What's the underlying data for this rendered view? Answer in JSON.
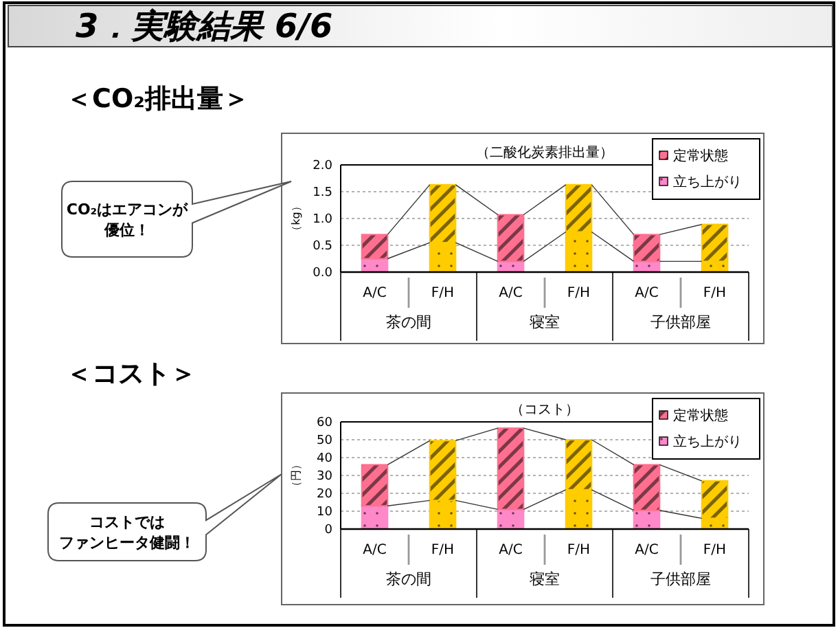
{
  "chart_data": [
    {
      "type": "bar",
      "title": "＜CO₂排出量＞",
      "subtitle": "（二酸化炭素排出量）",
      "ylabel": "（kg）",
      "stacked": true,
      "categories": [
        "A/C",
        "F/H",
        "A/C",
        "F/H",
        "A/C",
        "F/H"
      ],
      "series": [
        {
          "name": "立ち上がり",
          "colors": [
            "#ff88c8",
            "#ffcc00",
            "#ff88c8",
            "#ffcc00",
            "#ff88c8",
            "#ffcc00"
          ],
          "values": [
            0.25,
            0.55,
            0.2,
            0.75,
            0.2,
            0.2
          ]
        },
        {
          "name": "定常状態",
          "colors": [
            "#ff7090",
            "#ffcc00",
            "#ff7090",
            "#ffcc00",
            "#ff7090",
            "#ffcc00"
          ],
          "values": [
            0.45,
            1.08,
            0.87,
            0.88,
            0.5,
            0.69
          ]
        }
      ],
      "ylim": [
        0,
        2
      ],
      "yticks": [
        {
          "value": 0,
          "label": "0.0"
        },
        {
          "value": 0.5,
          "label": "0.5"
        },
        {
          "value": 1,
          "label": "1.0"
        },
        {
          "value": 1.5,
          "label": "1.5"
        },
        {
          "value": 2,
          "label": "2.0"
        }
      ],
      "grid": "y",
      "legend": "top right",
      "annotations": [
        "3．実験結果 6/6",
        "CO₂はエアコンが",
        "優位！",
        "茶の間",
        "寝室",
        "子供部屋"
      ]
    },
    {
      "type": "bar",
      "title": "＜コスト＞",
      "subtitle": "（コスト）",
      "ylabel": "（円）",
      "stacked": true,
      "categories": [
        "A/C",
        "F/H",
        "A/C",
        "F/H",
        "A/C",
        "F/H"
      ],
      "series": [
        {
          "name": "立ち上がり",
          "colors": [
            "#ff88c8",
            "#ffcc00",
            "#ff88c8",
            "#ffcc00",
            "#ff88c8",
            "#ffcc00"
          ],
          "values": [
            13,
            16,
            11,
            22,
            10.5,
            6
          ]
        },
        {
          "name": "定常状態",
          "colors": [
            "#ff7090",
            "#ffcc00",
            "#ff7090",
            "#ffcc00",
            "#ff7090",
            "#ffcc00"
          ],
          "values": [
            23,
            33.5,
            45.5,
            28,
            25.5,
            21
          ]
        }
      ],
      "ylim": [
        0,
        60
      ],
      "yticks": [
        0,
        10,
        20,
        30,
        40,
        50,
        60
      ],
      "grid": "y",
      "legend": "top right",
      "annotations": [
        "コストでは",
        "ファンヒータ健闘！",
        "茶の間",
        "寝室",
        "子供部屋"
      ]
    }
  ]
}
